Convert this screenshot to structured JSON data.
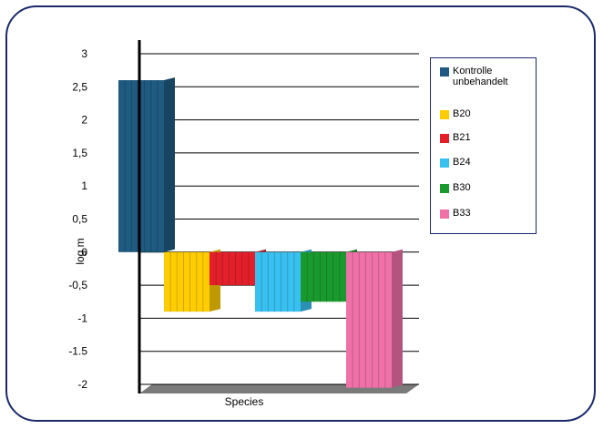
{
  "chart_data": {
    "type": "bar",
    "xlabel": "Species",
    "ylabel": "log m",
    "ylim": [
      -2,
      3
    ],
    "yticks": [
      "3",
      "2,5",
      "2",
      "1,5",
      "1",
      "0,5",
      "0",
      "-0,5",
      "-1",
      "-1.5",
      "-2"
    ],
    "ytick_values": [
      3,
      2.5,
      2,
      1.5,
      1,
      0.5,
      0,
      -0.5,
      -1,
      -1.5,
      -2
    ],
    "grid": true,
    "legend_position": "right",
    "series": [
      {
        "name": "Kontrolle\nunbehandelt",
        "value": 2.6,
        "color": "#1f5a80"
      },
      {
        "name": "B20",
        "value": -0.9,
        "color": "#ffcc00"
      },
      {
        "name": "B21",
        "value": -0.5,
        "color": "#e3202a"
      },
      {
        "name": "B24",
        "value": -0.9,
        "color": "#38c0f0"
      },
      {
        "name": "B30",
        "value": -0.75,
        "color": "#1a9a2e"
      },
      {
        "name": "B33",
        "value": -2.05,
        "color": "#f070a8"
      }
    ]
  }
}
